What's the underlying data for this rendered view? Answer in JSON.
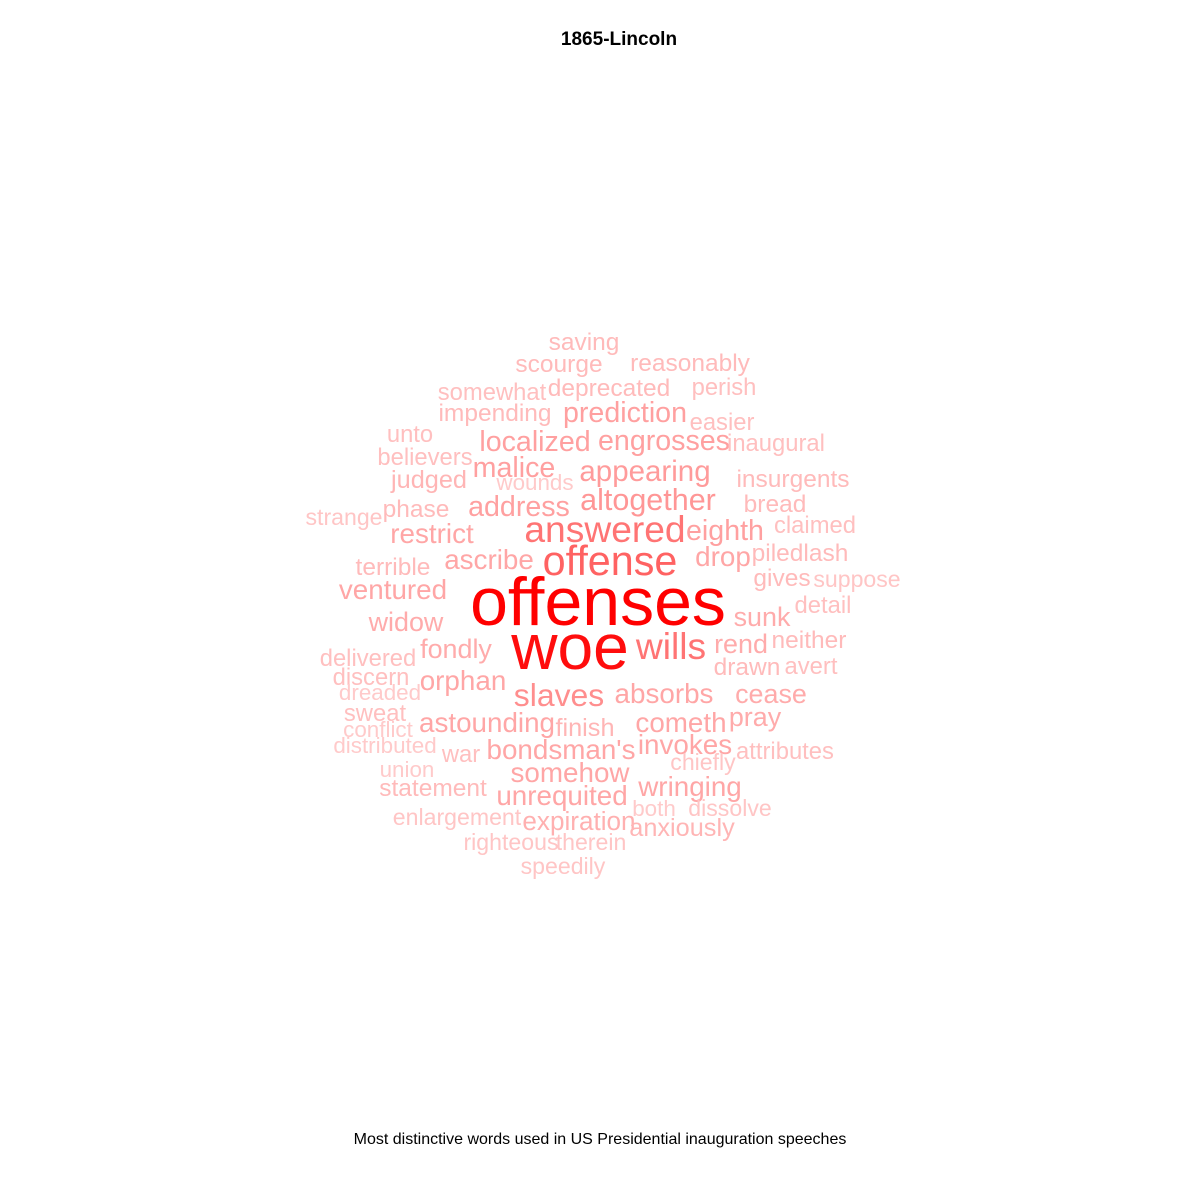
{
  "chart_data": {
    "type": "wordcloud",
    "title": "1865-Lincoln",
    "caption": "Most distinctive words used in US Presidential inauguration speeches",
    "color_scale": [
      "#ffcfcf",
      "#ff0000"
    ],
    "words": [
      {
        "text": "offenses",
        "weight": 1.0
      },
      {
        "text": "woe",
        "weight": 0.95
      },
      {
        "text": "offense",
        "weight": 0.62
      },
      {
        "text": "answered",
        "weight": 0.55
      },
      {
        "text": "wills",
        "weight": 0.55
      },
      {
        "text": "slaves",
        "weight": 0.45
      },
      {
        "text": "altogether",
        "weight": 0.42
      },
      {
        "text": "appearing",
        "weight": 0.4
      },
      {
        "text": "localized",
        "weight": 0.38
      },
      {
        "text": "prediction",
        "weight": 0.38
      },
      {
        "text": "engrosses",
        "weight": 0.38
      },
      {
        "text": "address",
        "weight": 0.38
      },
      {
        "text": "malice",
        "weight": 0.38
      },
      {
        "text": "eighth",
        "weight": 0.38
      },
      {
        "text": "restrict",
        "weight": 0.36
      },
      {
        "text": "ascribe",
        "weight": 0.36
      },
      {
        "text": "drop",
        "weight": 0.36
      },
      {
        "text": "ventured",
        "weight": 0.36
      },
      {
        "text": "widow",
        "weight": 0.34
      },
      {
        "text": "sunk",
        "weight": 0.34
      },
      {
        "text": "fondly",
        "weight": 0.34
      },
      {
        "text": "rend",
        "weight": 0.34
      },
      {
        "text": "orphan",
        "weight": 0.36
      },
      {
        "text": "absorbs",
        "weight": 0.36
      },
      {
        "text": "cease",
        "weight": 0.34
      },
      {
        "text": "astounding",
        "weight": 0.36
      },
      {
        "text": "cometh",
        "weight": 0.36
      },
      {
        "text": "pray",
        "weight": 0.34
      },
      {
        "text": "bondsman's",
        "weight": 0.36
      },
      {
        "text": "invokes",
        "weight": 0.36
      },
      {
        "text": "somehow",
        "weight": 0.36
      },
      {
        "text": "wringing",
        "weight": 0.36
      },
      {
        "text": "unrequited",
        "weight": 0.36
      },
      {
        "text": "expiration",
        "weight": 0.32
      },
      {
        "text": "anxiously",
        "weight": 0.3
      },
      {
        "text": "finish",
        "weight": 0.3
      },
      {
        "text": "judged",
        "weight": 0.3
      },
      {
        "text": "impending",
        "weight": 0.28
      },
      {
        "text": "deprecated",
        "weight": 0.28
      },
      {
        "text": "scourge",
        "weight": 0.28
      },
      {
        "text": "reasonably",
        "weight": 0.28
      },
      {
        "text": "saving",
        "weight": 0.28
      },
      {
        "text": "somewhat",
        "weight": 0.26
      },
      {
        "text": "perish",
        "weight": 0.26
      },
      {
        "text": "easier",
        "weight": 0.26
      },
      {
        "text": "inaugural",
        "weight": 0.26
      },
      {
        "text": "insurgents",
        "weight": 0.28
      },
      {
        "text": "bread",
        "weight": 0.28
      },
      {
        "text": "claimed",
        "weight": 0.26
      },
      {
        "text": "piledlash",
        "weight": 0.28
      },
      {
        "text": "gives",
        "weight": 0.28
      },
      {
        "text": "suppose",
        "weight": 0.24
      },
      {
        "text": "detail",
        "weight": 0.26
      },
      {
        "text": "neither",
        "weight": 0.28
      },
      {
        "text": "drawn",
        "weight": 0.28
      },
      {
        "text": "avert",
        "weight": 0.26
      },
      {
        "text": "attributes",
        "weight": 0.26
      },
      {
        "text": "chiefly",
        "weight": 0.24
      },
      {
        "text": "dissolve",
        "weight": 0.24
      },
      {
        "text": "both",
        "weight": 0.22
      },
      {
        "text": "unto",
        "weight": 0.26
      },
      {
        "text": "believers",
        "weight": 0.26
      },
      {
        "text": "phase",
        "weight": 0.28
      },
      {
        "text": "strange",
        "weight": 0.24
      },
      {
        "text": "terrible",
        "weight": 0.28
      },
      {
        "text": "delivered",
        "weight": 0.26
      },
      {
        "text": "discern",
        "weight": 0.26
      },
      {
        "text": "dreaded",
        "weight": 0.22
      },
      {
        "text": "sweat",
        "weight": 0.26
      },
      {
        "text": "conflict",
        "weight": 0.22
      },
      {
        "text": "distributed",
        "weight": 0.22
      },
      {
        "text": "union",
        "weight": 0.22
      },
      {
        "text": "war",
        "weight": 0.26
      },
      {
        "text": "statement",
        "weight": 0.28
      },
      {
        "text": "enlargement",
        "weight": 0.24
      },
      {
        "text": "righteous",
        "weight": 0.24
      },
      {
        "text": "therein",
        "weight": 0.24
      },
      {
        "text": "speedily",
        "weight": 0.24
      },
      {
        "text": "wounds",
        "weight": 0.22
      }
    ]
  }
}
